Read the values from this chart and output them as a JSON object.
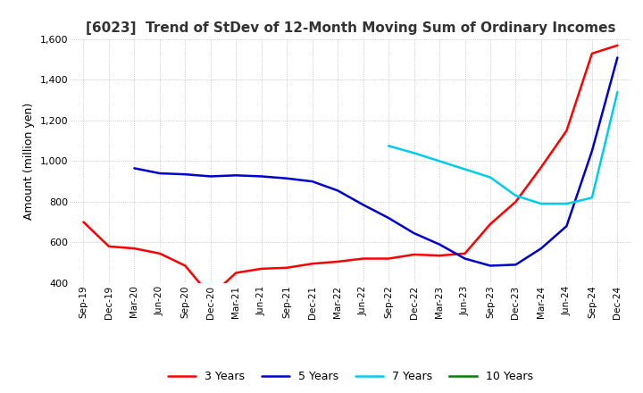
{
  "title": "[6023]  Trend of StDev of 12-Month Moving Sum of Ordinary Incomes",
  "ylabel": "Amount (million yen)",
  "ylim": [
    400,
    1600
  ],
  "yticks": [
    400,
    600,
    800,
    1000,
    1200,
    1400,
    1600
  ],
  "line_colors": {
    "3 Years": "#ff0000",
    "5 Years": "#0000cd",
    "7 Years": "#00ccee",
    "10 Years": "#008000"
  },
  "x_labels": [
    "Sep-19",
    "Dec-19",
    "Mar-20",
    "Jun-20",
    "Sep-20",
    "Dec-20",
    "Mar-21",
    "Jun-21",
    "Sep-21",
    "Dec-21",
    "Mar-22",
    "Jun-22",
    "Sep-22",
    "Dec-22",
    "Mar-23",
    "Jun-23",
    "Sep-23",
    "Dec-23",
    "Mar-24",
    "Jun-24",
    "Sep-24",
    "Dec-24"
  ],
  "data_3y": [
    700,
    580,
    570,
    545,
    485,
    335,
    450,
    470,
    475,
    495,
    505,
    520,
    520,
    540,
    535,
    545,
    690,
    800,
    970,
    1150,
    1530,
    1570
  ],
  "data_5y": [
    null,
    null,
    965,
    940,
    935,
    925,
    930,
    925,
    915,
    900,
    855,
    785,
    720,
    645,
    590,
    520,
    485,
    490,
    570,
    680,
    1050,
    1510
  ],
  "data_7y": [
    null,
    null,
    null,
    null,
    null,
    null,
    null,
    null,
    null,
    null,
    null,
    null,
    1075,
    1040,
    1000,
    960,
    920,
    830,
    790,
    790,
    820,
    1340
  ],
  "data_10y": [
    null,
    null,
    null,
    null,
    null,
    null,
    null,
    null,
    null,
    null,
    null,
    null,
    null,
    null,
    null,
    null,
    null,
    null,
    null,
    null,
    null,
    null
  ],
  "background_color": "#ffffff",
  "grid_color": "#aaaaaa"
}
